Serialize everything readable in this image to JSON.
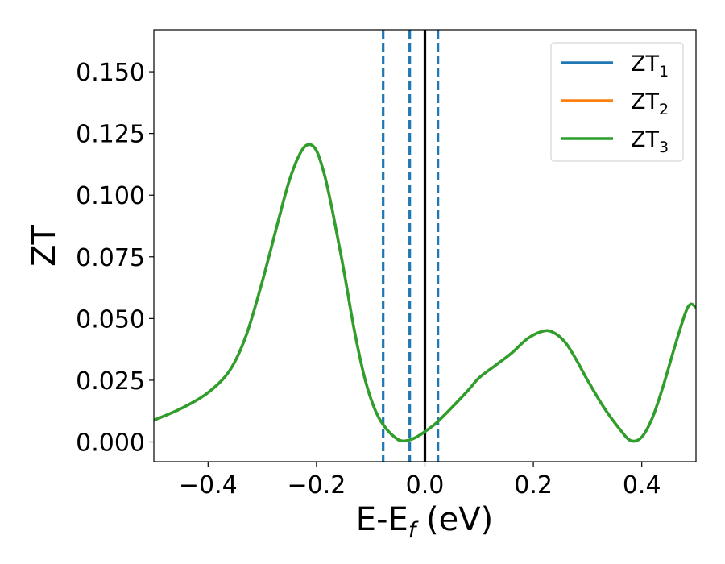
{
  "chart_data": {
    "type": "line",
    "xlabel": "E-E",
    "xlabel_sub": "f",
    "xlabel_suffix": " (eV)",
    "ylabel": "ZT",
    "xlim": [
      -0.5,
      0.5
    ],
    "ylim": [
      -0.008,
      0.167
    ],
    "x_ticks": [
      -0.4,
      -0.2,
      0.0,
      0.2,
      0.4
    ],
    "x_tick_labels": [
      "−0.4",
      "−0.2",
      "0.0",
      "0.2",
      "0.4"
    ],
    "y_ticks": [
      0.0,
      0.025,
      0.05,
      0.075,
      0.1,
      0.125,
      0.15
    ],
    "y_tick_labels": [
      "0.000",
      "0.025",
      "0.050",
      "0.075",
      "0.100",
      "0.125",
      "0.150"
    ],
    "grid": false,
    "legend": {
      "placement": "top-right",
      "entries": [
        {
          "base": "ZT",
          "sub": "1",
          "color": "#1f77b4"
        },
        {
          "base": "ZT",
          "sub": "2",
          "color": "#ff7f0e"
        },
        {
          "base": "ZT",
          "sub": "3",
          "color": "#2ca02c"
        }
      ]
    },
    "vertical_lines": [
      {
        "x": -0.077,
        "style": "dashed",
        "color": "#1f77b4"
      },
      {
        "x": -0.028,
        "style": "dashed",
        "color": "#1f77b4"
      },
      {
        "x": 0.0,
        "style": "solid",
        "color": "#000000"
      },
      {
        "x": 0.024,
        "style": "dashed",
        "color": "#1f77b4"
      }
    ],
    "x": [
      -0.5,
      -0.45,
      -0.4,
      -0.36,
      -0.33,
      -0.3,
      -0.27,
      -0.25,
      -0.23,
      -0.215,
      -0.2,
      -0.185,
      -0.17,
      -0.15,
      -0.13,
      -0.11,
      -0.09,
      -0.07,
      -0.05,
      -0.04,
      -0.03,
      -0.02,
      -0.01,
      0.0,
      0.02,
      0.05,
      0.08,
      0.1,
      0.13,
      0.16,
      0.19,
      0.22,
      0.24,
      0.26,
      0.28,
      0.3,
      0.33,
      0.36,
      0.38,
      0.4,
      0.42,
      0.44,
      0.46,
      0.48,
      0.49,
      0.5
    ],
    "series": [
      {
        "name": "ZT1",
        "color": "#1f77b4",
        "values": [
          0.0088,
          0.0135,
          0.02,
          0.029,
          0.043,
          0.065,
          0.09,
          0.106,
          0.117,
          0.1205,
          0.118,
          0.108,
          0.093,
          0.07,
          0.045,
          0.025,
          0.012,
          0.005,
          0.001,
          0.0004,
          0.0007,
          0.0015,
          0.0027,
          0.0042,
          0.0075,
          0.014,
          0.021,
          0.026,
          0.031,
          0.036,
          0.042,
          0.045,
          0.044,
          0.04,
          0.033,
          0.025,
          0.014,
          0.005,
          0.0005,
          0.002,
          0.01,
          0.023,
          0.038,
          0.052,
          0.0558,
          0.0545
        ]
      },
      {
        "name": "ZT2",
        "color": "#ff7f0e",
        "values": [
          0.0088,
          0.0135,
          0.02,
          0.029,
          0.043,
          0.065,
          0.09,
          0.106,
          0.117,
          0.1205,
          0.118,
          0.108,
          0.093,
          0.07,
          0.045,
          0.025,
          0.012,
          0.005,
          0.001,
          0.0004,
          0.0007,
          0.0015,
          0.0027,
          0.0042,
          0.0075,
          0.014,
          0.021,
          0.026,
          0.031,
          0.036,
          0.042,
          0.045,
          0.044,
          0.04,
          0.033,
          0.025,
          0.014,
          0.005,
          0.0005,
          0.002,
          0.01,
          0.023,
          0.038,
          0.052,
          0.0558,
          0.0545
        ]
      },
      {
        "name": "ZT3",
        "color": "#2ca02c",
        "values": [
          0.0088,
          0.0135,
          0.02,
          0.029,
          0.043,
          0.065,
          0.09,
          0.106,
          0.117,
          0.1205,
          0.118,
          0.108,
          0.093,
          0.07,
          0.045,
          0.025,
          0.012,
          0.005,
          0.001,
          0.0004,
          0.0007,
          0.0015,
          0.0027,
          0.0042,
          0.0075,
          0.014,
          0.021,
          0.026,
          0.031,
          0.036,
          0.042,
          0.045,
          0.044,
          0.04,
          0.033,
          0.025,
          0.014,
          0.005,
          0.0005,
          0.002,
          0.01,
          0.023,
          0.038,
          0.052,
          0.0558,
          0.0545
        ]
      }
    ]
  }
}
